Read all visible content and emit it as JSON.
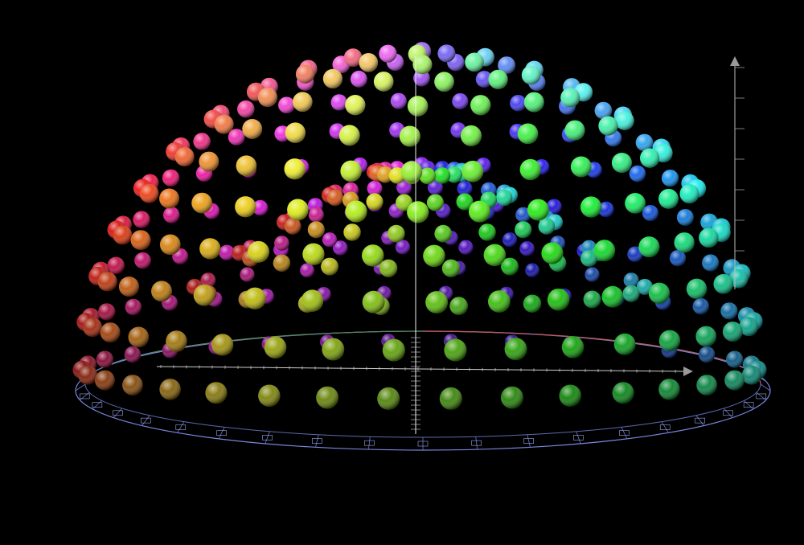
{
  "scene": {
    "background": "#000000",
    "ring_color_left": "#5a8a5a",
    "ring_color_right": "#c25a5a",
    "ring_color_front": "#7a88e0",
    "axis_color": "#e0e0e0",
    "sphere_hue_start": "#00ff80",
    "sphere_hue_end": "#8000ff"
  }
}
